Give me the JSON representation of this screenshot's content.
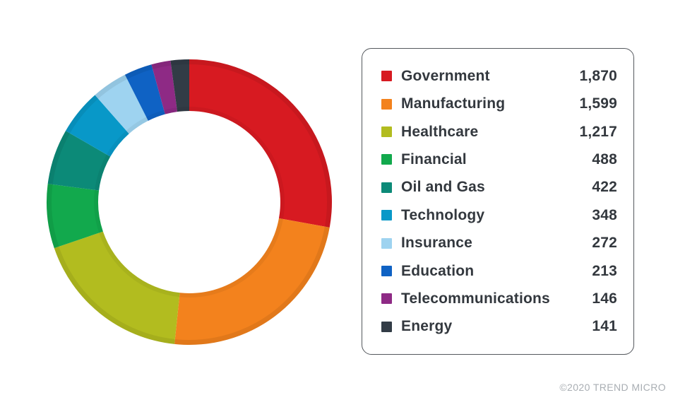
{
  "chart_data": {
    "type": "pie",
    "variant": "donut",
    "title": "",
    "legend_position": "right",
    "start_angle_deg": 0,
    "direction": "clockwise",
    "donut_hole_ratio": 0.64,
    "series": [
      {
        "label": "Government",
        "value": 1870,
        "display": "1,870",
        "color": "#d71a21"
      },
      {
        "label": "Manufacturing",
        "value": 1599,
        "display": "1,599",
        "color": "#f3821d"
      },
      {
        "label": "Healthcare",
        "value": 1217,
        "display": "1,217",
        "color": "#b2bc1f"
      },
      {
        "label": "Financial",
        "value": 488,
        "display": "488",
        "color": "#12a94d"
      },
      {
        "label": "Oil and Gas",
        "value": 422,
        "display": "422",
        "color": "#0c8a78"
      },
      {
        "label": "Technology",
        "value": 348,
        "display": "348",
        "color": "#0898c8"
      },
      {
        "label": "Insurance",
        "value": 272,
        "display": "272",
        "color": "#9ed3f0"
      },
      {
        "label": "Education",
        "value": 213,
        "display": "213",
        "color": "#0f62c4"
      },
      {
        "label": "Telecommunications",
        "value": 146,
        "display": "146",
        "color": "#8e2a85"
      },
      {
        "label": "Energy",
        "value": 141,
        "display": "141",
        "color": "#323c46"
      }
    ]
  },
  "footer": {
    "copyright": "©2020 TREND MICRO"
  },
  "colors": {
    "background": "#ffffff",
    "legend_border": "#54585d",
    "text": "#33383e",
    "footer_text": "#a9aeb3"
  }
}
